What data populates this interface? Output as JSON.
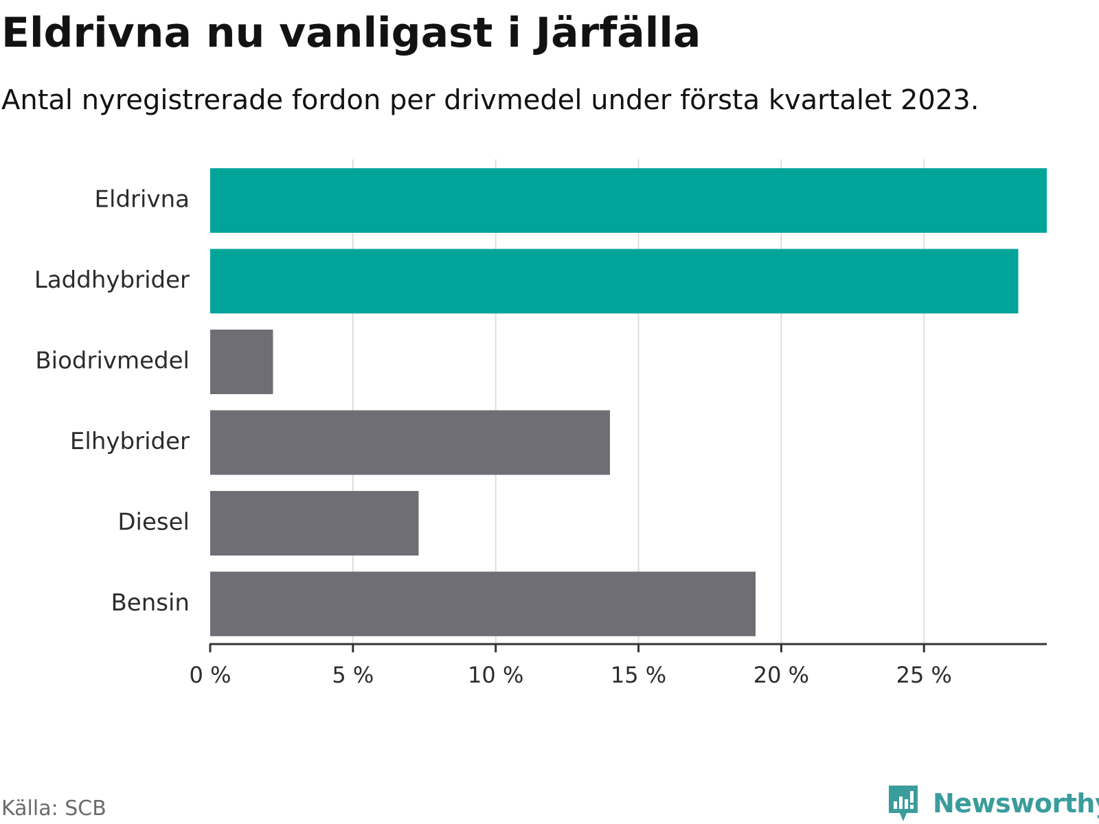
{
  "header": {
    "title": "Eldrivna nu vanligast i Järfälla",
    "subtitle": "Antal nyregistrerade fordon per drivmedel under första kvartalet 2023."
  },
  "footer": {
    "source": "Källa: SCB",
    "brand": "Newsworthy",
    "brand_icon": "bar-chart-speech-bubble-icon"
  },
  "colors": {
    "highlight": "#00a499",
    "default": "#6f6e75",
    "grid": "#dddddd",
    "axis": "#333333",
    "brand": "#3b9c9c"
  },
  "chart_data": {
    "type": "bar",
    "orientation": "horizontal",
    "title": "Eldrivna nu vanligast i Järfälla",
    "subtitle": "Antal nyregistrerade fordon per drivmedel under första kvartalet 2023.",
    "xlabel": "",
    "ylabel": "",
    "categories": [
      "Eldrivna",
      "Laddhybrider",
      "Biodrivmedel",
      "Elhybrider",
      "Diesel",
      "Bensin"
    ],
    "values": [
      29.3,
      28.3,
      2.2,
      14.0,
      7.3,
      19.1
    ],
    "highlighted": [
      true,
      true,
      false,
      false,
      false,
      false
    ],
    "xlim": [
      0,
      29.3
    ],
    "xticks": [
      0,
      5,
      10,
      15,
      20,
      25
    ],
    "xtick_labels": [
      "0 %",
      "5 %",
      "10 %",
      "15 %",
      "20 %",
      "25 %"
    ],
    "grid": true
  }
}
